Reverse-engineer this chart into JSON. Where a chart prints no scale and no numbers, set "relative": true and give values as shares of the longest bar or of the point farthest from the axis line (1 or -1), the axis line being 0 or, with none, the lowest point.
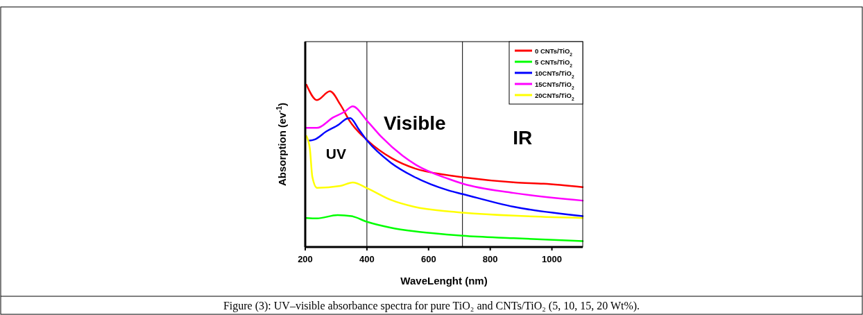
{
  "chart_data": {
    "type": "line",
    "relative": true,
    "xlabel": "WaveLenght (nm)",
    "ylabel": "Absorption (ev$^{-1}$)",
    "xlim": [
      200,
      1100
    ],
    "xticks": [
      200,
      400,
      600,
      800,
      1000
    ],
    "tick_labels": "x",
    "legend": "top right",
    "grid": false,
    "ref_lines": [
      {
        "axis": "x",
        "value": 400
      },
      {
        "axis": "x",
        "value": 710
      }
    ],
    "annotations": [
      "UV",
      "Visible",
      "IR",
      "Figure (3): UV–visible absorbance spectra for pure TiO₂ and CNTs/TiO₂ (5, 10, 15, 20 Wt%)."
    ],
    "series": [
      {
        "name": "0 CNTs/TiO$_{2}$",
        "color": "#ff0000",
        "x": [
          204,
          238,
          280,
          314,
          344,
          403,
          480,
          556,
          655,
          715,
          882,
          973,
          1100
        ],
        "values": [
          1.0,
          0.906,
          0.96,
          0.877,
          0.777,
          0.655,
          0.548,
          0.484,
          0.445,
          0.429,
          0.398,
          0.39,
          0.369
        ]
      },
      {
        "name": "5 CNTs/TiO$_{2}$",
        "color": "#00ff00",
        "x": [
          204,
          238,
          305,
          350,
          401,
          478,
          553,
          666,
          711,
          876,
          1100
        ],
        "values": [
          0.179,
          0.176,
          0.197,
          0.19,
          0.155,
          0.119,
          0.097,
          0.076,
          0.069,
          0.054,
          0.036
        ]
      },
      {
        "name": "10CNTs/TiO$_{2}$",
        "color": "#0000ff",
        "x": [
          211,
          230,
          268,
          309,
          335,
          346,
          373,
          401,
          478,
          553,
          666,
          711,
          876,
          1100
        ],
        "values": [
          0.655,
          0.662,
          0.712,
          0.755,
          0.791,
          0.794,
          0.727,
          0.655,
          0.519,
          0.433,
          0.348,
          0.326,
          0.248,
          0.19
        ]
      },
      {
        "name": "15CNTs/TiO$_{2}$",
        "color": "#ff00ff",
        "x": [
          204,
          238,
          290,
          328,
          354,
          401,
          448,
          516,
          560,
          666,
          711,
          876,
          1100
        ],
        "values": [
          0.734,
          0.734,
          0.798,
          0.834,
          0.867,
          0.777,
          0.677,
          0.562,
          0.505,
          0.419,
          0.39,
          0.333,
          0.286
        ]
      },
      {
        "name": "20CNTs/TiO$_{2}$",
        "color": "#ffff00",
        "x": [
          204,
          215,
          223,
          238,
          313,
          354,
          401,
          478,
          553,
          666,
          711,
          876,
          1100
        ],
        "values": [
          0.684,
          0.605,
          0.433,
          0.365,
          0.376,
          0.398,
          0.362,
          0.29,
          0.248,
          0.219,
          0.212,
          0.193,
          0.179
        ]
      }
    ]
  }
}
